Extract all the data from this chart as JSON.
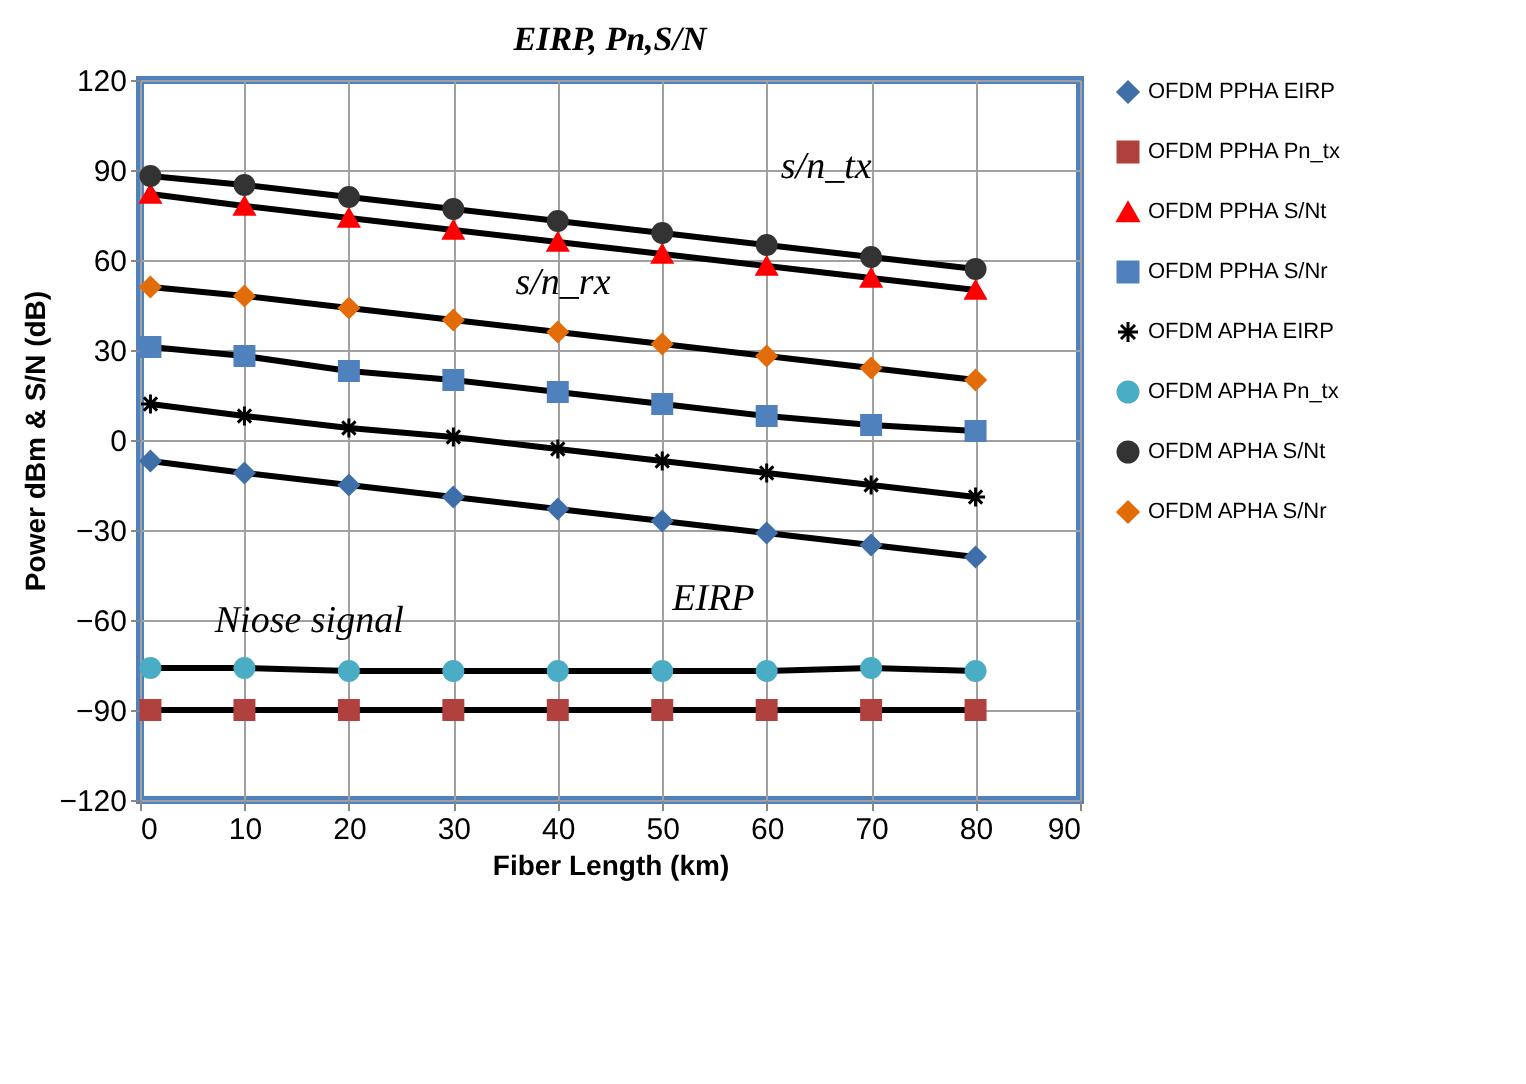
{
  "chart_data": {
    "type": "line",
    "title": "EIRP, Pn,S/N",
    "xlabel": "Fiber Length (km)",
    "ylabel": "Power dBm & S/N (dB)",
    "x": [
      1,
      10,
      20,
      30,
      40,
      50,
      60,
      70,
      80
    ],
    "xlim": [
      0,
      90
    ],
    "xticks": [
      0,
      10,
      20,
      30,
      40,
      50,
      60,
      70,
      80,
      90
    ],
    "ylim": [
      -120,
      120
    ],
    "yticks": [
      -120,
      -90,
      -60,
      -30,
      0,
      30,
      60,
      90,
      120
    ],
    "grid": true,
    "legend": "right",
    "line_style": "solid",
    "series": [
      {
        "name": "OFDM PPHA EIRP",
        "color": "#3f6fa8",
        "marker": "diamond",
        "values": [
          -7,
          -11,
          -15,
          -19,
          -23,
          -27,
          -31,
          -35,
          -39
        ]
      },
      {
        "name": "OFDM PPHA Pn_tx",
        "color": "#b0413e",
        "marker": "square",
        "values": [
          -90,
          -90,
          -90,
          -90,
          -90,
          -90,
          -90,
          -90,
          -90
        ]
      },
      {
        "name": "OFDM PPHA S/Nt",
        "color": "#ff0000",
        "marker": "triangle",
        "values": [
          82,
          78,
          74,
          70,
          66,
          62,
          58,
          54,
          50
        ]
      },
      {
        "name": "OFDM PPHA S/Nr",
        "color": "#4f81bd",
        "marker": "square",
        "values": [
          31,
          28,
          23,
          20,
          16,
          12,
          8,
          5,
          3
        ]
      },
      {
        "name": "OFDM APHA EIRP",
        "color": "#000000",
        "marker": "cross",
        "values": [
          12,
          8,
          4,
          1,
          -3,
          -7,
          -11,
          -15,
          -19
        ]
      },
      {
        "name": "OFDM APHA Pn_tx",
        "color": "#4bacc6",
        "marker": "circle",
        "values": [
          -76,
          -76,
          -77,
          -77,
          -77,
          -77,
          -77,
          -76,
          -77
        ]
      },
      {
        "name": "OFDM APHA S/Nt",
        "color": "#333333",
        "marker": "circle",
        "values": [
          88,
          85,
          81,
          77,
          73,
          69,
          65,
          61,
          57
        ]
      },
      {
        "name": "OFDM APHA S/Nr",
        "color": "#e36c0a",
        "marker": "diamond",
        "values": [
          51,
          48,
          44,
          40,
          36,
          32,
          28,
          24,
          20
        ]
      }
    ],
    "annotations": [
      "s/n_tx",
      "s/n_rx",
      "EIRP",
      "Niose signal"
    ]
  }
}
